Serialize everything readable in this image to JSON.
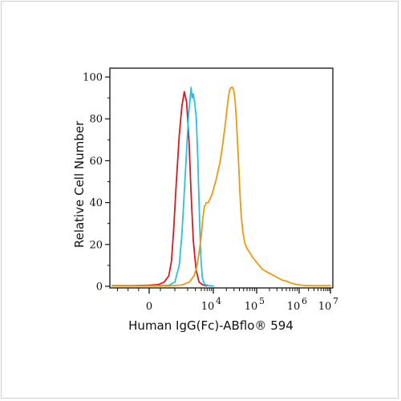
{
  "chart_data": {
    "type": "line",
    "xlabel": "Human IgG(Fc)-ABflo® 594",
    "ylabel": "Relative Cell Number",
    "ylim": [
      0,
      100
    ],
    "y_ticks": [
      "0",
      "20",
      "40",
      "60",
      "80",
      "100"
    ],
    "x_scale": "biexponential",
    "x_ticks": [
      {
        "value": 0,
        "label": "0",
        "exp": ""
      },
      {
        "value": 10000,
        "label": "10",
        "exp": "4"
      },
      {
        "value": 100000,
        "label": "10",
        "exp": "5"
      },
      {
        "value": 1000000,
        "label": "10",
        "exp": "6"
      },
      {
        "value": 10000000,
        "label": "10",
        "exp": "7"
      }
    ],
    "grid": false,
    "legend": "none",
    "series": [
      {
        "color": "#e0161d",
        "points": [
          [
            -3500,
            0.3
          ],
          [
            -1500,
            0.3
          ],
          [
            0,
            0.5
          ],
          [
            800,
            0.8
          ],
          [
            1200,
            2
          ],
          [
            1500,
            5
          ],
          [
            1700,
            12
          ],
          [
            1900,
            28
          ],
          [
            2100,
            50
          ],
          [
            2300,
            72
          ],
          [
            2500,
            86
          ],
          [
            2700,
            93
          ],
          [
            2900,
            88
          ],
          [
            3150,
            70
          ],
          [
            3400,
            45
          ],
          [
            3700,
            22
          ],
          [
            4100,
            8
          ],
          [
            4600,
            2
          ],
          [
            5500,
            0.6
          ],
          [
            7000,
            0.3
          ]
        ]
      },
      {
        "color": "#29bfe6",
        "points": [
          [
            -3500,
            0.2
          ],
          [
            0,
            0.2
          ],
          [
            1500,
            0.5
          ],
          [
            2000,
            2
          ],
          [
            2300,
            10
          ],
          [
            2500,
            25
          ],
          [
            2700,
            45
          ],
          [
            2900,
            65
          ],
          [
            3100,
            82
          ],
          [
            3250,
            88
          ],
          [
            3400,
            95
          ],
          [
            3550,
            90
          ],
          [
            3700,
            92
          ],
          [
            3900,
            88
          ],
          [
            4150,
            80
          ],
          [
            4400,
            60
          ],
          [
            4650,
            35
          ],
          [
            4900,
            15
          ],
          [
            5300,
            4
          ],
          [
            6000,
            1
          ],
          [
            7500,
            0.3
          ],
          [
            10000,
            0.2
          ]
        ]
      },
      {
        "color": "#f0980f",
        "points": [
          [
            -3500,
            0.2
          ],
          [
            1500,
            0.2
          ],
          [
            2500,
            0.6
          ],
          [
            3200,
            2
          ],
          [
            3800,
            5
          ],
          [
            4200,
            9
          ],
          [
            4600,
            16
          ],
          [
            5000,
            24
          ],
          [
            5400,
            32
          ],
          [
            6000,
            38
          ],
          [
            6700,
            40
          ],
          [
            7500,
            40
          ],
          [
            8400,
            42
          ],
          [
            9300,
            44
          ],
          [
            10200,
            47
          ],
          [
            11300,
            50
          ],
          [
            12500,
            54
          ],
          [
            13800,
            58
          ],
          [
            15000,
            62
          ],
          [
            16500,
            68
          ],
          [
            18000,
            74
          ],
          [
            19500,
            80
          ],
          [
            21000,
            86
          ],
          [
            22500,
            91
          ],
          [
            24000,
            94
          ],
          [
            26000,
            95
          ],
          [
            28000,
            95
          ],
          [
            30000,
            93
          ],
          [
            32000,
            88
          ],
          [
            34000,
            80
          ],
          [
            36000,
            70
          ],
          [
            38500,
            58
          ],
          [
            41000,
            45
          ],
          [
            44000,
            34
          ],
          [
            48000,
            26
          ],
          [
            53000,
            21
          ],
          [
            60000,
            18
          ],
          [
            70000,
            16
          ],
          [
            80000,
            14
          ],
          [
            95000,
            12
          ],
          [
            115000,
            10
          ],
          [
            140000,
            8
          ],
          [
            170000,
            7
          ],
          [
            210000,
            6
          ],
          [
            260000,
            5
          ],
          [
            320000,
            4
          ],
          [
            400000,
            3
          ],
          [
            500000,
            2.5
          ],
          [
            650000,
            1.5
          ],
          [
            900000,
            0.8
          ],
          [
            1500000,
            0.4
          ],
          [
            3000000,
            0.3
          ],
          [
            10000000,
            0.3
          ]
        ]
      }
    ]
  }
}
